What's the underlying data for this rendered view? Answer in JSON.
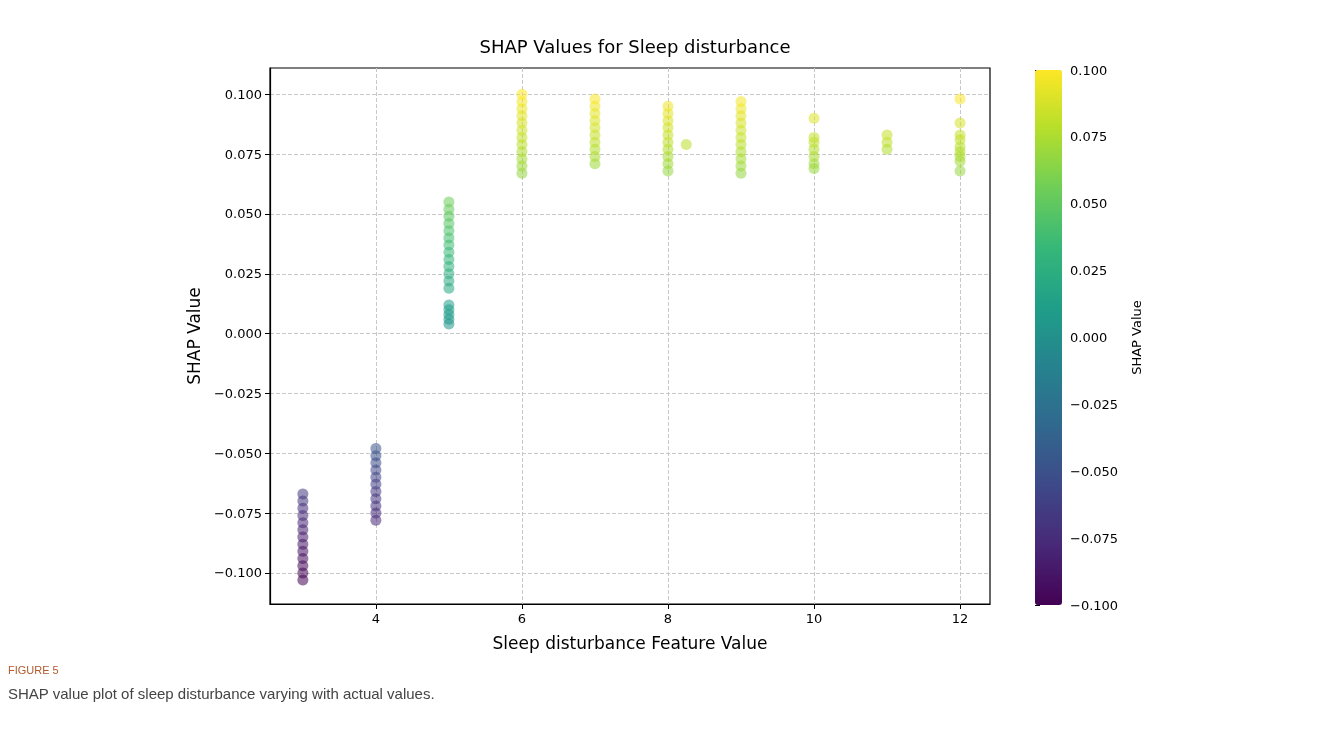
{
  "chart_data": {
    "type": "scatter",
    "title": "SHAP Values for Sleep disturbance",
    "xlabel": "Sleep disturbance Feature Value",
    "ylabel": "SHAP Value",
    "clabel": "SHAP Value",
    "annotations": [
      "FIGURE 5",
      "SHAP value plot of sleep disturbance varying with actual values."
    ],
    "x": [
      3,
      3,
      3,
      3,
      3,
      3,
      3,
      3,
      3,
      3,
      3,
      3,
      3,
      4,
      4,
      4,
      4,
      4,
      4,
      4,
      4,
      4,
      4,
      4,
      5,
      5,
      5,
      5,
      5,
      5,
      5,
      5,
      5,
      5,
      5,
      5,
      5,
      5,
      5,
      5,
      5,
      5,
      6,
      6,
      6,
      6,
      6,
      6,
      6,
      6,
      6,
      6,
      6,
      6,
      7,
      7,
      7,
      7,
      7,
      7,
      7,
      7,
      7,
      7,
      8,
      8,
      8,
      8,
      8,
      8,
      8,
      8,
      8,
      8,
      8.25,
      9,
      9,
      9,
      9,
      9,
      9,
      9,
      9,
      9,
      9,
      9,
      10,
      10,
      10,
      10,
      10,
      10,
      10,
      11,
      11,
      11,
      12,
      12,
      12,
      12,
      12,
      12,
      12,
      12,
      12
    ],
    "values": [
      -0.103,
      -0.1,
      -0.097,
      -0.094,
      -0.091,
      -0.088,
      -0.085,
      -0.082,
      -0.079,
      -0.076,
      -0.073,
      -0.07,
      -0.067,
      -0.078,
      -0.075,
      -0.072,
      -0.069,
      -0.066,
      -0.063,
      -0.06,
      -0.057,
      -0.054,
      -0.051,
      -0.048,
      0.004,
      0.006,
      0.008,
      0.01,
      0.012,
      0.019,
      0.022,
      0.025,
      0.028,
      0.031,
      0.034,
      0.037,
      0.04,
      0.043,
      0.046,
      0.049,
      0.052,
      0.055,
      0.067,
      0.07,
      0.073,
      0.076,
      0.079,
      0.082,
      0.085,
      0.088,
      0.091,
      0.094,
      0.097,
      0.1,
      0.071,
      0.074,
      0.077,
      0.08,
      0.083,
      0.086,
      0.089,
      0.092,
      0.095,
      0.098,
      0.068,
      0.071,
      0.074,
      0.077,
      0.08,
      0.083,
      0.086,
      0.089,
      0.092,
      0.095,
      0.079,
      0.067,
      0.07,
      0.073,
      0.076,
      0.079,
      0.082,
      0.085,
      0.088,
      0.091,
      0.094,
      0.097,
      0.069,
      0.071,
      0.074,
      0.077,
      0.08,
      0.082,
      0.09,
      0.077,
      0.08,
      0.083,
      0.068,
      0.072,
      0.074,
      0.076,
      0.078,
      0.081,
      0.083,
      0.088,
      0.098
    ],
    "cvalues": [
      -0.103,
      -0.1,
      -0.097,
      -0.094,
      -0.091,
      -0.088,
      -0.085,
      -0.082,
      -0.079,
      -0.076,
      -0.073,
      -0.07,
      -0.067,
      -0.078,
      -0.075,
      -0.072,
      -0.069,
      -0.066,
      -0.063,
      -0.06,
      -0.057,
      -0.054,
      -0.051,
      -0.048,
      0.004,
      0.006,
      0.008,
      0.01,
      0.012,
      0.019,
      0.022,
      0.025,
      0.028,
      0.031,
      0.034,
      0.037,
      0.04,
      0.043,
      0.046,
      0.049,
      0.052,
      0.055,
      0.067,
      0.07,
      0.073,
      0.076,
      0.079,
      0.082,
      0.085,
      0.088,
      0.091,
      0.094,
      0.097,
      0.1,
      0.071,
      0.074,
      0.077,
      0.08,
      0.083,
      0.086,
      0.089,
      0.092,
      0.095,
      0.098,
      0.068,
      0.071,
      0.074,
      0.077,
      0.08,
      0.083,
      0.086,
      0.089,
      0.092,
      0.095,
      0.079,
      0.067,
      0.07,
      0.073,
      0.076,
      0.079,
      0.082,
      0.085,
      0.088,
      0.091,
      0.094,
      0.097,
      0.069,
      0.071,
      0.074,
      0.077,
      0.08,
      0.082,
      0.09,
      0.077,
      0.08,
      0.083,
      0.068,
      0.072,
      0.074,
      0.076,
      0.078,
      0.081,
      0.083,
      0.088,
      0.098
    ],
    "xlim": [
      2.55,
      12.41
    ],
    "xticks": [
      4,
      6,
      8,
      10,
      12
    ],
    "ylim": [
      -0.113,
      0.111
    ],
    "yticks": [
      {
        "value": -0.1,
        "label": "−0.100"
      },
      {
        "value": -0.075,
        "label": "−0.075"
      },
      {
        "value": -0.05,
        "label": "−0.050"
      },
      {
        "value": -0.025,
        "label": "−0.025"
      },
      {
        "value": 0,
        "label": "0.000"
      },
      {
        "value": 0.025,
        "label": "0.025"
      },
      {
        "value": 0.05,
        "label": "0.050"
      },
      {
        "value": 0.075,
        "label": "0.075"
      },
      {
        "value": 0.1,
        "label": "0.100"
      }
    ],
    "clim": [
      -0.1,
      0.1
    ],
    "cticks": [
      {
        "value": -0.1,
        "label": "−0.100"
      },
      {
        "value": -0.075,
        "label": "−0.075"
      },
      {
        "value": -0.05,
        "label": "−0.050"
      },
      {
        "value": -0.025,
        "label": "−0.025"
      },
      {
        "value": 0,
        "label": "0.000"
      },
      {
        "value": 0.025,
        "label": "0.025"
      },
      {
        "value": 0.05,
        "label": "0.050"
      },
      {
        "value": 0.075,
        "label": "0.075"
      },
      {
        "value": 0.1,
        "label": "0.100"
      }
    ],
    "grid": true,
    "marker": "circle"
  }
}
